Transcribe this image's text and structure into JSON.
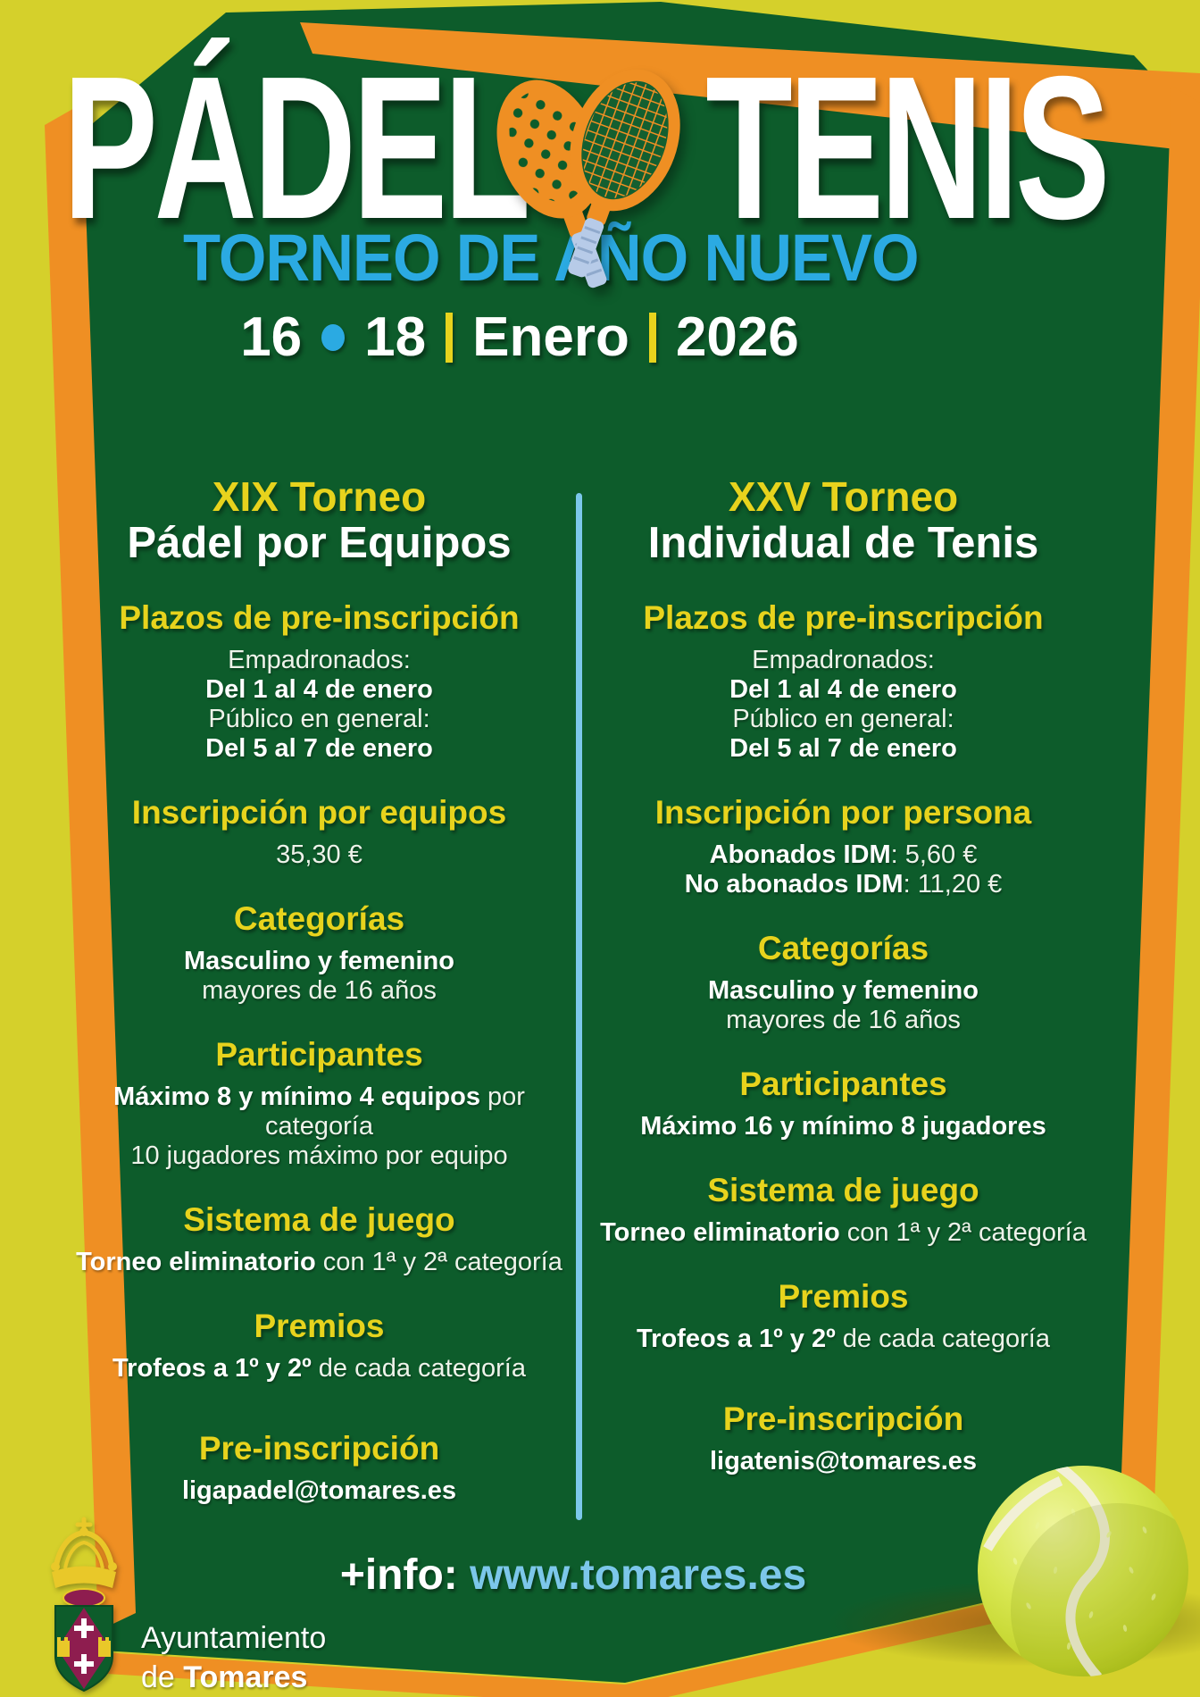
{
  "colors": {
    "background_yellow": "#d5d02b",
    "panel_green": "#0d5c2b",
    "accent_orange": "#ef8f23",
    "heading_yellow": "#e7d31d",
    "title_blue": "#2baae2",
    "light_blue": "#7cc7ea",
    "text_white": "#ffffff",
    "crest_maroon": "#8e1d4f",
    "ball_green": "#cde04a"
  },
  "header": {
    "title_padel": "PÁDEL",
    "title_tenis": "TENIS",
    "subtitle": "TORNEO DE AÑO NUEVO",
    "date_day_start": "16",
    "date_day_end": "18",
    "date_month": "Enero",
    "date_year": "2026"
  },
  "columns": [
    {
      "id": "padel",
      "torneo": "XIX Torneo",
      "name": "Pádel por Equipos",
      "sections": [
        {
          "heading": "Plazos de pre-inscripción",
          "lines": [
            [
              {
                "t": "Empadronados:"
              }
            ],
            [
              {
                "t": "Del 1 al 4 de enero",
                "b": true
              }
            ],
            [
              {
                "t": "Público en general:"
              }
            ],
            [
              {
                "t": "Del 5 al 7 de enero",
                "b": true
              }
            ]
          ]
        },
        {
          "heading": "Inscripción por equipos",
          "lines": [
            [
              {
                "t": "35,30 €"
              }
            ]
          ]
        },
        {
          "heading": "Categorías",
          "lines": [
            [
              {
                "t": "Masculino y femenino",
                "b": true
              }
            ],
            [
              {
                "t": "mayores de 16 años"
              }
            ]
          ]
        },
        {
          "heading": "Participantes",
          "lines": [
            [
              {
                "t": "Máximo 8 y mínimo 4 equipos",
                "b": true
              },
              {
                "t": " por categoría"
              }
            ],
            [
              {
                "t": "10 jugadores máximo por equipo"
              }
            ]
          ]
        },
        {
          "heading": "Sistema de juego",
          "lines": [
            [
              {
                "t": "Torneo eliminatorio",
                "b": true
              },
              {
                "t": " con 1ª y 2ª categoría"
              }
            ]
          ]
        },
        {
          "heading": "Premios",
          "lines": [
            [
              {
                "t": "Trofeos a 1º y 2º",
                "b": true
              },
              {
                "t": " de cada categoría"
              }
            ]
          ]
        },
        {
          "heading": "Pre-inscripción",
          "lines": [
            [
              {
                "t": "ligapadel@tomares.es",
                "b": true
              }
            ]
          ]
        }
      ]
    },
    {
      "id": "tenis",
      "torneo": "XXV Torneo",
      "name": "Individual de Tenis",
      "sections": [
        {
          "heading": "Plazos de pre-inscripción",
          "lines": [
            [
              {
                "t": "Empadronados:"
              }
            ],
            [
              {
                "t": "Del 1 al 4 de enero",
                "b": true
              }
            ],
            [
              {
                "t": "Público en general:"
              }
            ],
            [
              {
                "t": "Del 5 al 7 de enero",
                "b": true
              }
            ]
          ]
        },
        {
          "heading": "Inscripción por persona",
          "lines": [
            [
              {
                "t": "Abonados IDM",
                "b": true
              },
              {
                "t": ": 5,60 €"
              }
            ],
            [
              {
                "t": "No abonados IDM",
                "b": true
              },
              {
                "t": ": 11,20 €"
              }
            ]
          ]
        },
        {
          "heading": "Categorías",
          "lines": [
            [
              {
                "t": "Masculino y femenino",
                "b": true
              }
            ],
            [
              {
                "t": "mayores de 16 años"
              }
            ]
          ]
        },
        {
          "heading": "Participantes",
          "lines": [
            [
              {
                "t": "Máximo 16 y mínimo 8 jugadores",
                "b": true
              }
            ]
          ]
        },
        {
          "heading": "Sistema de juego",
          "lines": [
            [
              {
                "t": "Torneo eliminatorio",
                "b": true
              },
              {
                "t": " con 1ª y 2ª categoría"
              }
            ]
          ]
        },
        {
          "heading": "Premios",
          "lines": [
            [
              {
                "t": "Trofeos a 1º y 2º",
                "b": true
              },
              {
                "t": " de cada categoría"
              }
            ]
          ]
        },
        {
          "heading": "Pre-inscripción",
          "lines": [
            [
              {
                "t": "ligatenis@tomares.es",
                "b": true
              }
            ]
          ]
        }
      ]
    }
  ],
  "footer": {
    "info_label": "+info:",
    "info_url": "www.tomares.es",
    "org_line1": "Ayuntamiento",
    "org_line2_regular": "de ",
    "org_line2_bold": "Tomares"
  }
}
